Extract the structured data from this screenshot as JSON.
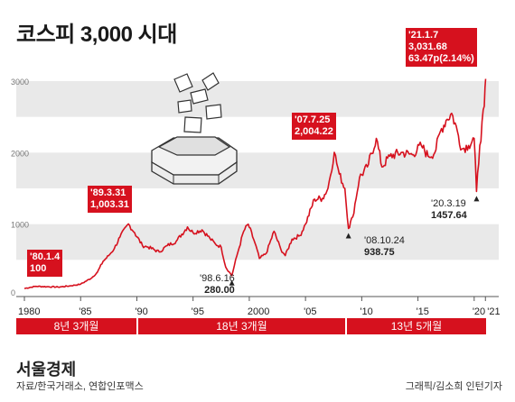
{
  "title": "코스피 3,000 시대",
  "footer": {
    "brand": "서울경제",
    "source": "자료/한국거래소, 연합인포맥스",
    "credit": "그래픽/김소희 인턴기자"
  },
  "colors": {
    "accent": "#d6111e",
    "band": "#e9e9e9",
    "text": "#222222"
  },
  "chart_data": {
    "type": "line",
    "title": "코스피 3,000 시대",
    "ylim": [
      0,
      3000
    ],
    "y_ticks": [
      "0",
      "1000",
      "2000",
      "3000"
    ],
    "x_ticks": [
      "1980",
      "'85",
      "'90",
      "'95",
      "2000",
      "'05",
      "'10",
      "'15",
      "'20",
      "'21"
    ],
    "series": [
      {
        "x": [
          1980.0,
          1981.0,
          1982.0,
          1983.0,
          1984.0,
          1985.0,
          1986.0,
          1986.5,
          1987.0,
          1987.5,
          1988.0,
          1988.5,
          1989.25,
          1989.8,
          1990.5,
          1991.0,
          1992.0,
          1992.7,
          1993.5,
          1994.5,
          1995.0,
          1995.8,
          1996.5,
          1997.0,
          1997.5,
          1997.9,
          1998.45,
          1998.9,
          1999.5,
          1999.9,
          2000.5,
          2000.9,
          2001.5,
          2002.2,
          2002.8,
          2003.2,
          2003.8,
          2004.5,
          2005.0,
          2005.8,
          2006.5,
          2007.0,
          2007.56,
          2008.0,
          2008.5,
          2008.82,
          2009.2,
          2009.8,
          2010.5,
          2011.3,
          2011.8,
          2012.5,
          2013.5,
          2014.5,
          2015.3,
          2015.9,
          2016.5,
          2017.0,
          2017.5,
          2018.0,
          2018.5,
          2018.9,
          2019.5,
          2020.0,
          2020.21,
          2020.5,
          2020.9,
          2021.02
        ],
        "values": [
          100,
          130,
          125,
          120,
          135,
          160,
          250,
          330,
          480,
          560,
          660,
          820,
          1003.31,
          880,
          700,
          680,
          610,
          700,
          760,
          960,
          880,
          920,
          800,
          720,
          680,
          400,
          280,
          560,
          900,
          1000,
          740,
          520,
          590,
          900,
          650,
          560,
          790,
          840,
          1000,
          1350,
          1360,
          1500,
          2004.22,
          1700,
          1500,
          938.75,
          1100,
          1650,
          1800,
          2200,
          1800,
          1950,
          2000,
          1970,
          2100,
          1950,
          2000,
          2300,
          2450,
          2550,
          2300,
          2050,
          2100,
          2200,
          1457.64,
          2100,
          2650,
          3031.68
        ]
      }
    ],
    "annotations": [
      {
        "date": "'80.1.4",
        "value": "100"
      },
      {
        "date": "'89.3.31",
        "value": "1,003.31"
      },
      {
        "date": "'98.6.16",
        "value": "280.00"
      },
      {
        "date": "'07.7.25",
        "value": "2,004.22"
      },
      {
        "date": "'08.10.24",
        "value": "938.75"
      },
      {
        "date": "'20.3.19",
        "value": "1457.64"
      },
      {
        "date": "'21.1.7",
        "value": "3,031.68",
        "change": "63.47p(2.14%)"
      }
    ],
    "periods": [
      "8년 3개월",
      "18년 3개월",
      "13년 5개월"
    ]
  }
}
